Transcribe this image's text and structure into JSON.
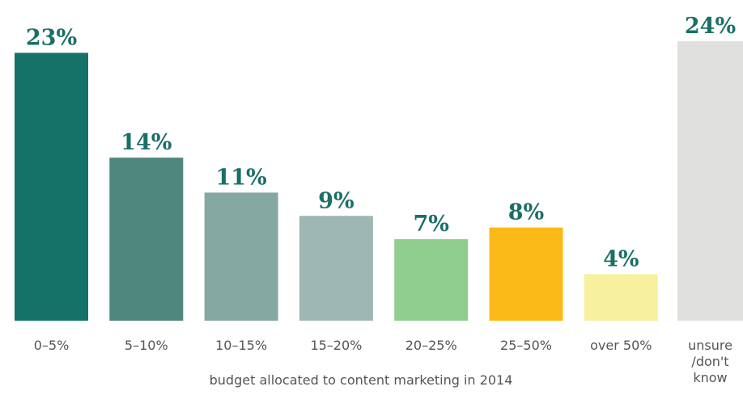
{
  "chart_data": {
    "type": "bar",
    "x_label": "budget allocated to content marketing in 2014",
    "categories": [
      "0–5%",
      "5–10%",
      "10–15%",
      "15–20%",
      "20–25%",
      "25–50%",
      "over 50%",
      "unsure /don't know"
    ],
    "values": [
      23,
      14,
      11,
      9,
      7,
      8,
      4,
      24
    ],
    "value_labels": [
      "23%",
      "14%",
      "11%",
      "9%",
      "7%",
      "8%",
      "4%",
      "24%"
    ],
    "colors": [
      "#157268",
      "#4e877e",
      "#86a8a3",
      "#9fb7b3",
      "#8fce8f",
      "#fbb917",
      "#f7f19d",
      "#e0e0de"
    ]
  }
}
